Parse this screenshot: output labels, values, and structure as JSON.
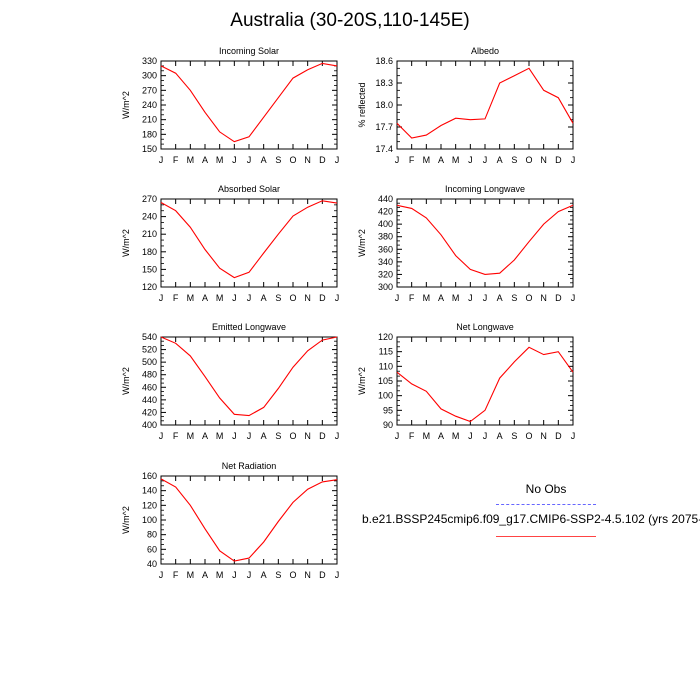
{
  "title": "Australia (30-20S,110-145E)",
  "legend": {
    "obs_label": "No Obs",
    "model_label": "b.e21.BSSP245cmip6.f09_g17.CMIP6-SSP2-4.5.102 (yrs 2075-",
    "obs_color": "#6666ff",
    "model_color": "#ff0000"
  },
  "chart_data": [
    {
      "type": "line",
      "title": "Incoming Solar",
      "ylabel": "W/m^2",
      "categories": [
        "J",
        "F",
        "M",
        "A",
        "M",
        "J",
        "J",
        "A",
        "S",
        "O",
        "N",
        "D",
        "J"
      ],
      "ylim": [
        150,
        330
      ],
      "yticks": [
        150,
        180,
        210,
        240,
        270,
        300,
        330
      ],
      "tick_labels": [
        "150",
        "180",
        "210",
        "240",
        "270",
        "300",
        "330"
      ],
      "series": [
        {
          "values": [
            320,
            305,
            270,
            225,
            185,
            165,
            175,
            215,
            255,
            295,
            312,
            325,
            320
          ]
        }
      ]
    },
    {
      "type": "line",
      "title": "Albedo",
      "ylabel": "% reflected",
      "categories": [
        "J",
        "F",
        "M",
        "A",
        "M",
        "J",
        "J",
        "A",
        "S",
        "O",
        "N",
        "D",
        "J"
      ],
      "ylim": [
        17.4,
        18.6
      ],
      "yticks": [
        17.4,
        17.7,
        18.0,
        18.3,
        18.6
      ],
      "tick_labels": [
        "17.4",
        "17.7",
        "18.0",
        "18.3",
        "18.6"
      ],
      "series": [
        {
          "values": [
            17.75,
            17.55,
            17.59,
            17.72,
            17.82,
            17.8,
            17.81,
            18.3,
            18.4,
            18.5,
            18.2,
            18.1,
            17.75
          ]
        }
      ]
    },
    {
      "type": "line",
      "title": "Absorbed Solar",
      "ylabel": "W/m^2",
      "categories": [
        "J",
        "F",
        "M",
        "A",
        "M",
        "J",
        "J",
        "A",
        "S",
        "O",
        "N",
        "D",
        "J"
      ],
      "ylim": [
        120,
        270
      ],
      "yticks": [
        120,
        150,
        180,
        210,
        240,
        270
      ],
      "tick_labels": [
        "120",
        "150",
        "180",
        "210",
        "240",
        "270"
      ],
      "series": [
        {
          "values": [
            264,
            250,
            222,
            184,
            152,
            136,
            145,
            178,
            210,
            241,
            256,
            267,
            263
          ]
        }
      ]
    },
    {
      "type": "line",
      "title": "Incoming Longwave",
      "ylabel": "W/m^2",
      "categories": [
        "J",
        "F",
        "M",
        "A",
        "M",
        "J",
        "J",
        "A",
        "S",
        "O",
        "N",
        "D",
        "J"
      ],
      "ylim": [
        300,
        440
      ],
      "yticks": [
        300,
        320,
        340,
        360,
        380,
        400,
        420,
        440
      ],
      "tick_labels": [
        "300",
        "320",
        "340",
        "360",
        "380",
        "400",
        "420",
        "440"
      ],
      "series": [
        {
          "values": [
            430,
            425,
            410,
            383,
            350,
            328,
            320,
            322,
            343,
            372,
            400,
            420,
            430
          ]
        }
      ]
    },
    {
      "type": "line",
      "title": "Emitted Longwave",
      "ylabel": "W/m^2",
      "categories": [
        "J",
        "F",
        "M",
        "A",
        "M",
        "J",
        "J",
        "A",
        "S",
        "O",
        "N",
        "D",
        "J"
      ],
      "ylim": [
        400,
        540
      ],
      "yticks": [
        400,
        420,
        440,
        460,
        480,
        500,
        520,
        540
      ],
      "tick_labels": [
        "400",
        "420",
        "440",
        "460",
        "480",
        "500",
        "520",
        "540"
      ],
      "series": [
        {
          "values": [
            540,
            530,
            510,
            477,
            443,
            417,
            415,
            428,
            458,
            492,
            518,
            535,
            540
          ]
        }
      ]
    },
    {
      "type": "line",
      "title": "Net Longwave",
      "ylabel": "W/m^2",
      "categories": [
        "J",
        "F",
        "M",
        "A",
        "M",
        "J",
        "J",
        "A",
        "S",
        "O",
        "N",
        "D",
        "J"
      ],
      "ylim": [
        90,
        120
      ],
      "yticks": [
        90,
        95,
        100,
        105,
        110,
        115,
        120
      ],
      "tick_labels": [
        "90",
        "95",
        "100",
        "105",
        "110",
        "115",
        "120"
      ],
      "series": [
        {
          "values": [
            108,
            104,
            101.5,
            95.5,
            93,
            91.2,
            95,
            106,
            111.5,
            116.5,
            114,
            115,
            108
          ]
        }
      ]
    },
    {
      "type": "line",
      "title": "Net Radiation",
      "ylabel": "W/m^2",
      "categories": [
        "J",
        "F",
        "M",
        "A",
        "M",
        "J",
        "J",
        "A",
        "S",
        "O",
        "N",
        "D",
        "J"
      ],
      "ylim": [
        40,
        160
      ],
      "yticks": [
        40,
        60,
        80,
        100,
        120,
        140,
        160
      ],
      "tick_labels": [
        "40",
        "60",
        "80",
        "100",
        "120",
        "140",
        "160"
      ],
      "series": [
        {
          "values": [
            156,
            145,
            120,
            88,
            58,
            44,
            48,
            70,
            98,
            124,
            142,
            152,
            155
          ]
        }
      ]
    }
  ]
}
